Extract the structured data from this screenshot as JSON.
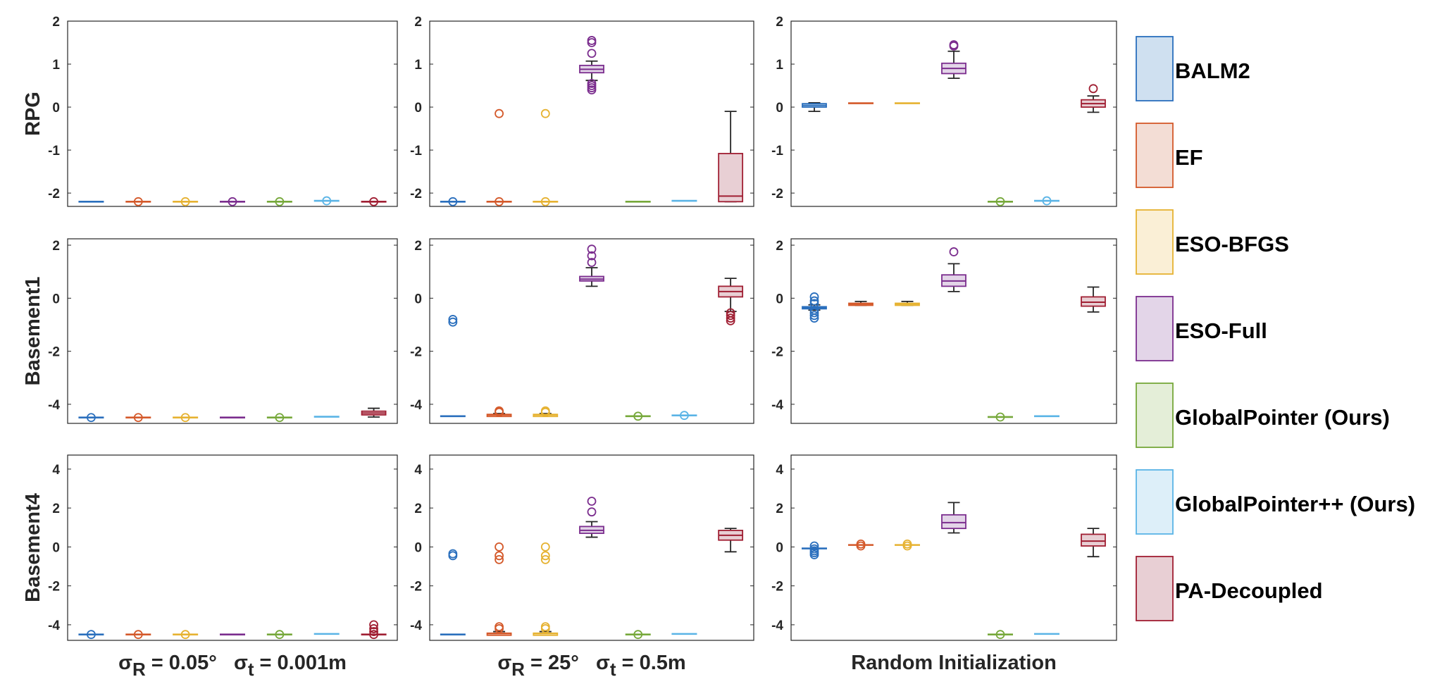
{
  "chart_data": {
    "type": "box",
    "layout": "3x3 grid of box plots with shared legend on the right",
    "legend_position": "right",
    "grid": false,
    "series": [
      {
        "name": "BALM2",
        "color": "#2a6fbd",
        "fill": "#cfe0f0"
      },
      {
        "name": "EF",
        "color": "#d4592a",
        "fill": "#f3ddd5"
      },
      {
        "name": "ESO-BFGS",
        "color": "#e6b231",
        "fill": "#faefd6"
      },
      {
        "name": "ESO-Full",
        "color": "#7b2d8e",
        "fill": "#e3d5e8"
      },
      {
        "name": "GlobalPointer (Ours)",
        "color": "#76a83a",
        "fill": "#e4eed8"
      },
      {
        "name": "GlobalPointer++ (Ours)",
        "color": "#5ab4e6",
        "fill": "#ddeff9"
      },
      {
        "name": "PA-Decoupled",
        "color": "#a01f33",
        "fill": "#e8cfd4"
      }
    ],
    "row_labels": [
      "RPG",
      "Basement1",
      "Basement4"
    ],
    "col_labels": [
      {
        "sigma": "σ",
        "sub1": "R",
        "text1": " = 0.05°",
        "sub2": "t",
        "text2": " = 0.001m"
      },
      {
        "sigma": "σ",
        "sub1": "R",
        "text1": " = 25°",
        "sub2": "t",
        "text2": " = 0.5m"
      },
      {
        "plain": "Random Initialization"
      }
    ],
    "rows": [
      {
        "ylim": [
          -2.31,
          2.0
        ],
        "yticks": [
          -2,
          -1,
          0,
          1,
          2
        ],
        "panels": [
          [
            {
              "q1": -2.2,
              "med": -2.2,
              "q3": -2.2,
              "lo": -2.2,
              "hi": -2.2,
              "out": []
            },
            {
              "q1": -2.2,
              "med": -2.2,
              "q3": -2.2,
              "lo": -2.2,
              "hi": -2.2,
              "out": [
                -2.2
              ]
            },
            {
              "q1": -2.2,
              "med": -2.2,
              "q3": -2.2,
              "lo": -2.2,
              "hi": -2.2,
              "out": [
                -2.2
              ]
            },
            {
              "q1": -2.2,
              "med": -2.2,
              "q3": -2.2,
              "lo": -2.2,
              "hi": -2.2,
              "out": [
                -2.2
              ]
            },
            {
              "q1": -2.2,
              "med": -2.2,
              "q3": -2.2,
              "lo": -2.2,
              "hi": -2.2,
              "out": [
                -2.2
              ]
            },
            {
              "q1": -2.18,
              "med": -2.18,
              "q3": -2.18,
              "lo": -2.18,
              "hi": -2.18,
              "out": [
                -2.18
              ]
            },
            {
              "q1": -2.2,
              "med": -2.2,
              "q3": -2.2,
              "lo": -2.2,
              "hi": -2.2,
              "out": [
                -2.2
              ]
            }
          ],
          [
            {
              "q1": -2.2,
              "med": -2.2,
              "q3": -2.2,
              "lo": -2.2,
              "hi": -2.2,
              "out": [
                -2.2
              ]
            },
            {
              "q1": -2.2,
              "med": -2.2,
              "q3": -2.2,
              "lo": -2.2,
              "hi": -2.2,
              "out": [
                -2.2,
                -0.15
              ]
            },
            {
              "q1": -2.2,
              "med": -2.2,
              "q3": -2.2,
              "lo": -2.2,
              "hi": -2.2,
              "out": [
                -2.2,
                -0.15
              ]
            },
            {
              "q1": 0.8,
              "med": 0.88,
              "q3": 0.97,
              "lo": 0.62,
              "hi": 1.07,
              "out": [
                1.55,
                1.5,
                1.25,
                0.55,
                0.5,
                0.45,
                0.4
              ]
            },
            {
              "q1": -2.2,
              "med": -2.2,
              "q3": -2.2,
              "lo": -2.2,
              "hi": -2.2,
              "out": []
            },
            {
              "q1": -2.18,
              "med": -2.18,
              "q3": -2.18,
              "lo": -2.18,
              "hi": -2.18,
              "out": []
            },
            {
              "q1": -2.2,
              "med": -2.07,
              "q3": -1.08,
              "lo": -2.2,
              "hi": -0.1,
              "out": []
            }
          ],
          [
            {
              "q1": 0.0,
              "med": 0.04,
              "q3": 0.08,
              "lo": -0.1,
              "hi": 0.1,
              "out": []
            },
            {
              "q1": 0.07,
              "med": 0.09,
              "q3": 0.1,
              "lo": 0.07,
              "hi": 0.1,
              "out": []
            },
            {
              "q1": 0.07,
              "med": 0.09,
              "q3": 0.1,
              "lo": 0.07,
              "hi": 0.1,
              "out": []
            },
            {
              "q1": 0.78,
              "med": 0.9,
              "q3": 1.02,
              "lo": 0.67,
              "hi": 1.3,
              "out": [
                1.45,
                1.42
              ]
            },
            {
              "q1": -2.2,
              "med": -2.2,
              "q3": -2.2,
              "lo": -2.2,
              "hi": -2.2,
              "out": [
                -2.2
              ]
            },
            {
              "q1": -2.18,
              "med": -2.18,
              "q3": -2.18,
              "lo": -2.18,
              "hi": -2.18,
              "out": [
                -2.18
              ]
            },
            {
              "q1": 0.0,
              "med": 0.08,
              "q3": 0.17,
              "lo": -0.12,
              "hi": 0.26,
              "out": [
                0.43
              ]
            }
          ]
        ]
      },
      {
        "ylim": [
          -4.72,
          2.24
        ],
        "yticks": [
          -4,
          -2,
          0,
          2
        ],
        "panels": [
          [
            {
              "q1": -4.5,
              "med": -4.5,
              "q3": -4.5,
              "lo": -4.5,
              "hi": -4.5,
              "out": [
                -4.5
              ]
            },
            {
              "q1": -4.5,
              "med": -4.5,
              "q3": -4.5,
              "lo": -4.5,
              "hi": -4.5,
              "out": [
                -4.5
              ]
            },
            {
              "q1": -4.5,
              "med": -4.5,
              "q3": -4.5,
              "lo": -4.5,
              "hi": -4.5,
              "out": [
                -4.5
              ]
            },
            {
              "q1": -4.5,
              "med": -4.5,
              "q3": -4.5,
              "lo": -4.5,
              "hi": -4.5,
              "out": []
            },
            {
              "q1": -4.5,
              "med": -4.5,
              "q3": -4.5,
              "lo": -4.5,
              "hi": -4.5,
              "out": [
                -4.5
              ]
            },
            {
              "q1": -4.47,
              "med": -4.47,
              "q3": -4.47,
              "lo": -4.47,
              "hi": -4.47,
              "out": []
            },
            {
              "q1": -4.4,
              "med": -4.33,
              "q3": -4.26,
              "lo": -4.48,
              "hi": -4.15,
              "out": []
            }
          ],
          [
            {
              "q1": -4.45,
              "med": -4.45,
              "q3": -4.45,
              "lo": -4.45,
              "hi": -4.45,
              "out": [
                -0.8,
                -0.9
              ]
            },
            {
              "q1": -4.42,
              "med": -4.4,
              "q3": -4.38,
              "lo": -4.45,
              "hi": -4.35,
              "out": [
                -4.25,
                -4.3
              ]
            },
            {
              "q1": -4.42,
              "med": -4.4,
              "q3": -4.38,
              "lo": -4.45,
              "hi": -4.35,
              "out": [
                -4.25,
                -4.3
              ]
            },
            {
              "q1": 0.65,
              "med": 0.72,
              "q3": 0.82,
              "lo": 0.45,
              "hi": 1.15,
              "out": [
                1.85,
                1.6,
                1.35
              ]
            },
            {
              "q1": -4.45,
              "med": -4.45,
              "q3": -4.45,
              "lo": -4.45,
              "hi": -4.45,
              "out": [
                -4.45
              ]
            },
            {
              "q1": -4.42,
              "med": -4.42,
              "q3": -4.42,
              "lo": -4.42,
              "hi": -4.42,
              "out": [
                -4.42
              ]
            },
            {
              "q1": 0.05,
              "med": 0.25,
              "q3": 0.45,
              "lo": -0.5,
              "hi": 0.75,
              "out": [
                -0.55,
                -0.65,
                -0.75,
                -0.85
              ]
            }
          ],
          [
            {
              "q1": -0.38,
              "med": -0.35,
              "q3": -0.32,
              "lo": -0.45,
              "hi": -0.25,
              "out": [
                0.05,
                -0.1,
                -0.2,
                -0.45,
                -0.55,
                -0.65,
                -0.75
              ]
            },
            {
              "q1": -0.25,
              "med": -0.22,
              "q3": -0.19,
              "lo": -0.27,
              "hi": -0.12,
              "out": []
            },
            {
              "q1": -0.25,
              "med": -0.22,
              "q3": -0.19,
              "lo": -0.27,
              "hi": -0.12,
              "out": []
            },
            {
              "q1": 0.45,
              "med": 0.65,
              "q3": 0.88,
              "lo": 0.25,
              "hi": 1.3,
              "out": [
                1.75
              ]
            },
            {
              "q1": -4.48,
              "med": -4.48,
              "q3": -4.48,
              "lo": -4.48,
              "hi": -4.48,
              "out": [
                -4.48
              ]
            },
            {
              "q1": -4.45,
              "med": -4.45,
              "q3": -4.45,
              "lo": -4.45,
              "hi": -4.45,
              "out": []
            },
            {
              "q1": -0.3,
              "med": -0.15,
              "q3": 0.05,
              "lo": -0.52,
              "hi": 0.42,
              "out": []
            }
          ]
        ]
      },
      {
        "ylim": [
          -4.8,
          4.72
        ],
        "yticks": [
          -4,
          -2,
          0,
          2,
          4
        ],
        "panels": [
          [
            {
              "q1": -4.5,
              "med": -4.5,
              "q3": -4.5,
              "lo": -4.5,
              "hi": -4.5,
              "out": [
                -4.5
              ]
            },
            {
              "q1": -4.5,
              "med": -4.5,
              "q3": -4.5,
              "lo": -4.5,
              "hi": -4.5,
              "out": [
                -4.5
              ]
            },
            {
              "q1": -4.5,
              "med": -4.5,
              "q3": -4.5,
              "lo": -4.5,
              "hi": -4.5,
              "out": [
                -4.5
              ]
            },
            {
              "q1": -4.5,
              "med": -4.5,
              "q3": -4.5,
              "lo": -4.5,
              "hi": -4.5,
              "out": []
            },
            {
              "q1": -4.5,
              "med": -4.5,
              "q3": -4.5,
              "lo": -4.5,
              "hi": -4.5,
              "out": [
                -4.5
              ]
            },
            {
              "q1": -4.47,
              "med": -4.47,
              "q3": -4.47,
              "lo": -4.47,
              "hi": -4.47,
              "out": []
            },
            {
              "q1": -4.5,
              "med": -4.5,
              "q3": -4.5,
              "lo": -4.5,
              "hi": -4.5,
              "out": [
                -4.0,
                -4.2,
                -4.35,
                -4.5
              ]
            }
          ],
          [
            {
              "q1": -4.5,
              "med": -4.5,
              "q3": -4.5,
              "lo": -4.5,
              "hi": -4.5,
              "out": [
                -0.35,
                -0.45
              ]
            },
            {
              "q1": -4.47,
              "med": -4.45,
              "q3": -4.43,
              "lo": -4.5,
              "hi": -4.35,
              "out": [
                0.0,
                -0.45,
                -0.65,
                -4.1,
                -4.2
              ]
            },
            {
              "q1": -4.47,
              "med": -4.45,
              "q3": -4.43,
              "lo": -4.5,
              "hi": -4.35,
              "out": [
                0.0,
                -0.45,
                -0.65,
                -4.1,
                -4.2
              ]
            },
            {
              "q1": 0.7,
              "med": 0.85,
              "q3": 1.05,
              "lo": 0.5,
              "hi": 1.3,
              "out": [
                2.35,
                1.8
              ]
            },
            {
              "q1": -4.5,
              "med": -4.5,
              "q3": -4.5,
              "lo": -4.5,
              "hi": -4.5,
              "out": [
                -4.5
              ]
            },
            {
              "q1": -4.47,
              "med": -4.47,
              "q3": -4.47,
              "lo": -4.47,
              "hi": -4.47,
              "out": []
            },
            {
              "q1": 0.35,
              "med": 0.6,
              "q3": 0.85,
              "lo": -0.25,
              "hi": 0.95,
              "out": []
            }
          ],
          [
            {
              "q1": -0.1,
              "med": -0.08,
              "q3": -0.06,
              "lo": -0.1,
              "hi": -0.06,
              "out": [
                0.05,
                -0.1,
                -0.2,
                -0.3,
                -0.4
              ]
            },
            {
              "q1": 0.08,
              "med": 0.1,
              "q3": 0.12,
              "lo": 0.06,
              "hi": 0.12,
              "out": [
                0.15,
                0.05
              ]
            },
            {
              "q1": 0.08,
              "med": 0.1,
              "q3": 0.12,
              "lo": 0.06,
              "hi": 0.12,
              "out": [
                0.15,
                0.05
              ]
            },
            {
              "q1": 0.95,
              "med": 1.25,
              "q3": 1.65,
              "lo": 0.72,
              "hi": 2.28,
              "out": []
            },
            {
              "q1": -4.5,
              "med": -4.5,
              "q3": -4.5,
              "lo": -4.5,
              "hi": -4.5,
              "out": [
                -4.5
              ]
            },
            {
              "q1": -4.47,
              "med": -4.47,
              "q3": -4.47,
              "lo": -4.47,
              "hi": -4.47,
              "out": []
            },
            {
              "q1": 0.05,
              "med": 0.3,
              "q3": 0.65,
              "lo": -0.5,
              "hi": 0.95,
              "out": []
            }
          ]
        ]
      }
    ]
  }
}
